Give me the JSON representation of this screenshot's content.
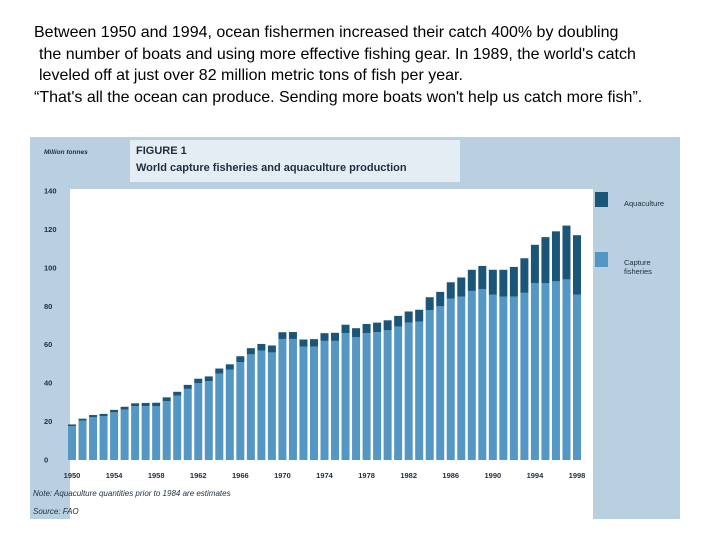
{
  "caption": {
    "line1": "Between 1950 and 1994, ocean fishermen increased their catch 400% by doubling",
    "line2": "the number of boats and using more effective fishing gear. In 1989, the world's catch",
    "line3": "leveled off at just over 82 million metric tons of fish per year.",
    "line4": "“That's all the ocean can produce. Sending more boats won't help us catch more fish”."
  },
  "figure": {
    "label": "FIGURE 1",
    "title": "World capture fisheries and aquaculture production",
    "units": "Million tonnes",
    "note": "Note: Aquaculture quantities prior to 1984 are estimates",
    "source": "Source: FAO"
  },
  "colors": {
    "capture": "#5496c4",
    "aquaculture": "#1b5578",
    "plot_bg": "#ffffff",
    "header_bg": "#b8d0e0",
    "title_box_bg": "#e4edf3"
  },
  "chart_data": {
    "type": "bar",
    "stacked": true,
    "categories": [
      "1950",
      "1951",
      "1952",
      "1953",
      "1954",
      "1955",
      "1956",
      "1957",
      "1958",
      "1959",
      "1960",
      "1961",
      "1962",
      "1963",
      "1964",
      "1965",
      "1966",
      "1967",
      "1968",
      "1969",
      "1970",
      "1971",
      "1972",
      "1973",
      "1974",
      "1975",
      "1976",
      "1977",
      "1978",
      "1979",
      "1980",
      "1981",
      "1982",
      "1983",
      "1984",
      "1985",
      "1986",
      "1987",
      "1988",
      "1989",
      "1990",
      "1991",
      "1992",
      "1993",
      "1994",
      "1995",
      "1996",
      "1997",
      "1998"
    ],
    "series": [
      {
        "name": "Capture fisheries",
        "values": [
          17.7,
          20.5,
          22.3,
          22.8,
          24.8,
          26.3,
          28.0,
          28.0,
          28.0,
          30.7,
          33.5,
          37.0,
          40.0,
          41.0,
          45.0,
          47.0,
          51.0,
          55.0,
          57.0,
          56.0,
          63.0,
          63.0,
          59.0,
          59.0,
          62.0,
          62.0,
          66.0,
          64.0,
          66.0,
          66.5,
          67.5,
          69.5,
          71.5,
          72.0,
          78.0,
          80.0,
          84.0,
          85.0,
          88.0,
          89.0,
          86.0,
          85.0,
          85.0,
          87.0,
          92.0,
          92.0,
          93.0,
          94.0,
          86.0
        ]
      },
      {
        "name": "Aquaculture",
        "values": [
          0.8,
          1.0,
          1.1,
          1.2,
          1.3,
          1.4,
          1.5,
          1.7,
          1.8,
          1.9,
          2.0,
          2.1,
          2.3,
          2.5,
          2.6,
          2.8,
          3.0,
          3.2,
          3.4,
          3.6,
          3.5,
          3.6,
          3.7,
          3.9,
          4.0,
          4.2,
          4.4,
          4.6,
          4.8,
          5.0,
          5.2,
          5.5,
          5.8,
          6.2,
          6.7,
          7.5,
          8.5,
          10.0,
          11.0,
          12.0,
          13.0,
          14.0,
          15.5,
          18.0,
          20.0,
          24.0,
          26.0,
          28.0,
          31.0
        ]
      }
    ],
    "y_ticks": [
      "0",
      "20",
      "40",
      "60",
      "80",
      "100",
      "120",
      "140"
    ],
    "x_ticks": [
      "1950",
      "1954",
      "1958",
      "1962",
      "1966",
      "1970",
      "1974",
      "1978",
      "1982",
      "1986",
      "1990",
      "1994",
      "1998"
    ],
    "ylim": [
      0,
      140
    ],
    "grid": false,
    "legend_position": "right"
  }
}
